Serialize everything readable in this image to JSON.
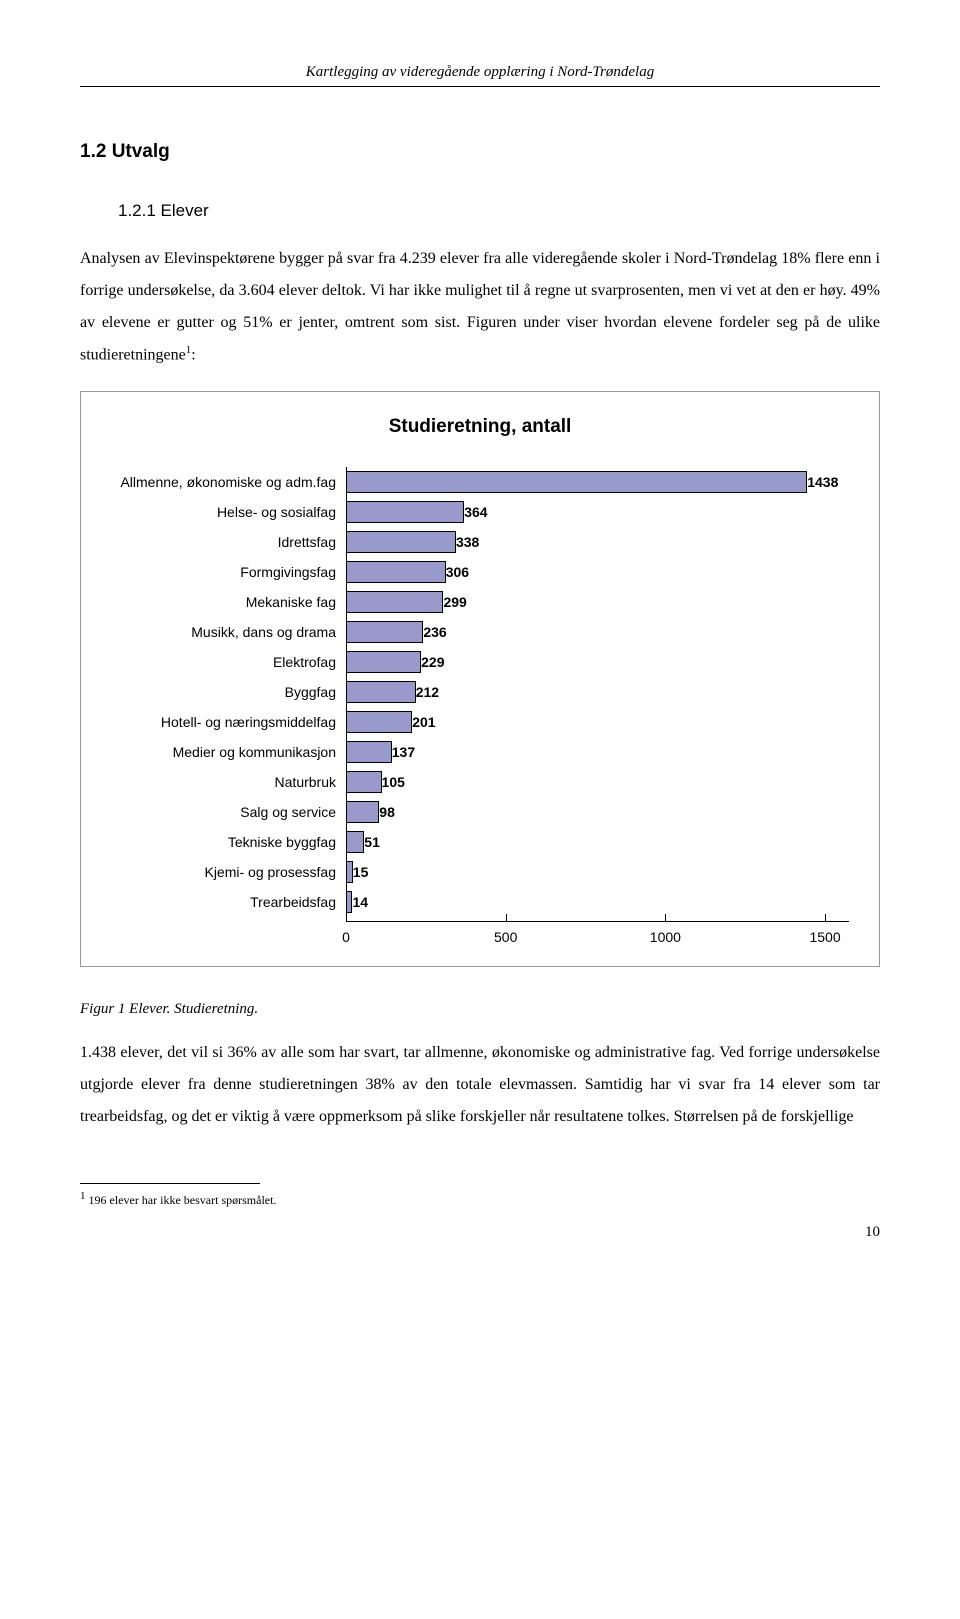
{
  "doc": {
    "running_header": "Kartlegging av videregående opplæring i Nord-Trøndelag",
    "h2": "1.2   Utvalg",
    "h3": "1.2.1   Elever",
    "para1": "Analysen av Elevinspektørene bygger på svar fra 4.239 elever fra alle videregående skoler i Nord-Trøndelag 18% flere enn i forrige undersøkelse, da 3.604 elever deltok. Vi har ikke mulighet til å regne ut svarprosenten, men vi vet at den er høy. 49% av elevene er gutter og 51% er jenter, omtrent som sist. Figuren under viser hvordan elevene fordeler seg på de ulike studieretningene",
    "para1_sup": "1",
    "para1_tail": ":",
    "caption": "Figur 1 Elever. Studieretning.",
    "para2": "1.438 elever, det vil si 36% av alle som har svart, tar allmenne, økonomiske og administrative fag. Ved forrige undersøkelse utgjorde elever fra denne studieretningen 38% av den totale elevmassen. Samtidig har vi svar fra 14 elever som tar trearbeidsfag, og det er viktig å være oppmerksom på slike forskjeller når resultatene tolkes. Størrelsen på de forskjellige",
    "footnote_marker": "1",
    "footnote": " 196 elever har ikke besvart spørsmålet.",
    "page_number": "10"
  },
  "chart": {
    "type": "bar-horizontal",
    "title": "Studieretning, antall",
    "bar_fill": "#9999cc",
    "bar_border": "#000000",
    "grid_color": "#000000",
    "background": "#ffffff",
    "label_fontsize": 14,
    "value_fontsize": 14,
    "title_fontsize": 19,
    "xmin": 0,
    "xmax": 1575,
    "xticks": [
      0,
      500,
      1000,
      1500
    ],
    "categories": [
      {
        "label": "Allmenne, økonomiske og adm.fag",
        "value": 1438
      },
      {
        "label": "Helse- og sosialfag",
        "value": 364
      },
      {
        "label": "Idrettsfag",
        "value": 338
      },
      {
        "label": "Formgivingsfag",
        "value": 306
      },
      {
        "label": "Mekaniske fag",
        "value": 299
      },
      {
        "label": "Musikk, dans og drama",
        "value": 236
      },
      {
        "label": "Elektrofag",
        "value": 229
      },
      {
        "label": "Byggfag",
        "value": 212
      },
      {
        "label": "Hotell- og næringsmiddelfag",
        "value": 201
      },
      {
        "label": "Medier og kommunikasjon",
        "value": 137
      },
      {
        "label": "Naturbruk",
        "value": 105
      },
      {
        "label": "Salg og service",
        "value": 98
      },
      {
        "label": "Tekniske byggfag",
        "value": 51
      },
      {
        "label": "Kjemi- og prosessfag",
        "value": 15
      },
      {
        "label": "Trearbeidsfag",
        "value": 14
      }
    ]
  }
}
